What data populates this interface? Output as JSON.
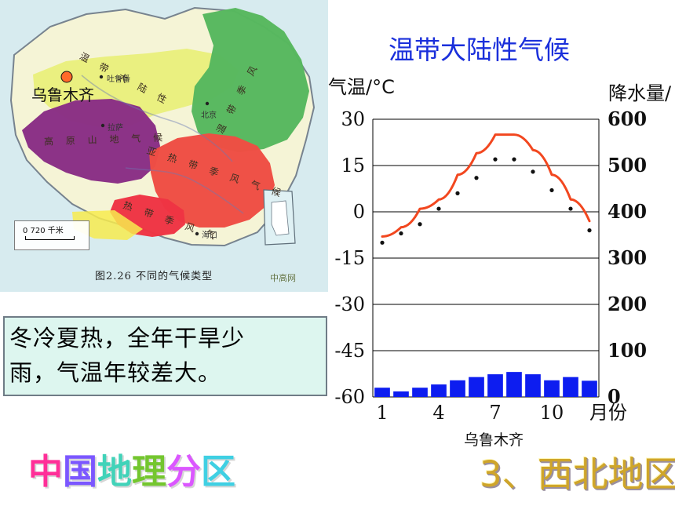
{
  "title": "温带大陆性气候",
  "map": {
    "label": "乌鲁木齐",
    "caption": "图2.26   不同的气候类型",
    "scale_text": "0        720 千米",
    "watermark": "中高网",
    "region_labels": [
      {
        "name": "temperate-continental-label",
        "text": "温  带  大  陆  性"
      },
      {
        "name": "plateau-mountain-label",
        "text": "高  原  山  地  气  候"
      },
      {
        "name": "temperate-monsoon-label",
        "text": "温  带  季  风"
      },
      {
        "name": "subtropical-monsoon-label",
        "text": "亚  热  带  季  风  气  候"
      },
      {
        "name": "tropical-monsoon-label",
        "text": "热  带  季  风  气"
      }
    ],
    "city_labels": [
      "吐鲁番",
      "北京",
      "拉萨",
      "海口"
    ]
  },
  "summary": "冬冷夏热，全年干旱少\n雨，气温年较差大。",
  "chart_data": {
    "type": "bar",
    "title": "温带大陆性气候",
    "left_axis_label": "气温/°C",
    "right_axis_label": "降水量/",
    "x_unit": "月份",
    "xlabel": "乌鲁木齐",
    "categories": [
      1,
      2,
      3,
      4,
      5,
      6,
      7,
      8,
      9,
      10,
      11,
      12
    ],
    "x_ticks": [
      "1",
      "4",
      "7",
      "10"
    ],
    "left_ticks": [
      "30",
      "15",
      "0",
      "-15",
      "-30",
      "-45",
      "-60"
    ],
    "right_ticks": [
      "600",
      "500",
      "400",
      "300",
      "200",
      "100",
      "0"
    ],
    "ylim": [
      -60,
      30
    ],
    "y2lim": [
      0,
      600
    ],
    "series": [
      {
        "name": "",
        "kind": "bar",
        "axis": "right",
        "values": [
          20,
          12,
          20,
          27,
          36,
          43,
          49,
          54,
          49,
          36,
          43,
          35
        ]
      },
      {
        "name": "",
        "kind": "line",
        "axis": "left",
        "values": [
          -8,
          -5,
          1,
          4,
          12,
          19,
          25,
          25,
          20,
          12,
          4,
          -3
        ]
      },
      {
        "name": "",
        "kind": "scatter",
        "axis": "left",
        "values": [
          -10,
          -7,
          -4,
          1,
          6,
          11,
          17,
          17,
          13,
          7,
          1,
          -6
        ]
      }
    ],
    "colors": {
      "bar": "#0d1df0",
      "line": "#f2471f",
      "dots": "#111111",
      "grid": "#000000"
    }
  },
  "footer": {
    "left": "中国地理分区",
    "right": "3、西北地区",
    "left_colors": [
      "#ff2f98",
      "#7b57ff",
      "#41d3b9",
      "#74c62f",
      "#db57ff",
      "#3fd0e3"
    ]
  }
}
